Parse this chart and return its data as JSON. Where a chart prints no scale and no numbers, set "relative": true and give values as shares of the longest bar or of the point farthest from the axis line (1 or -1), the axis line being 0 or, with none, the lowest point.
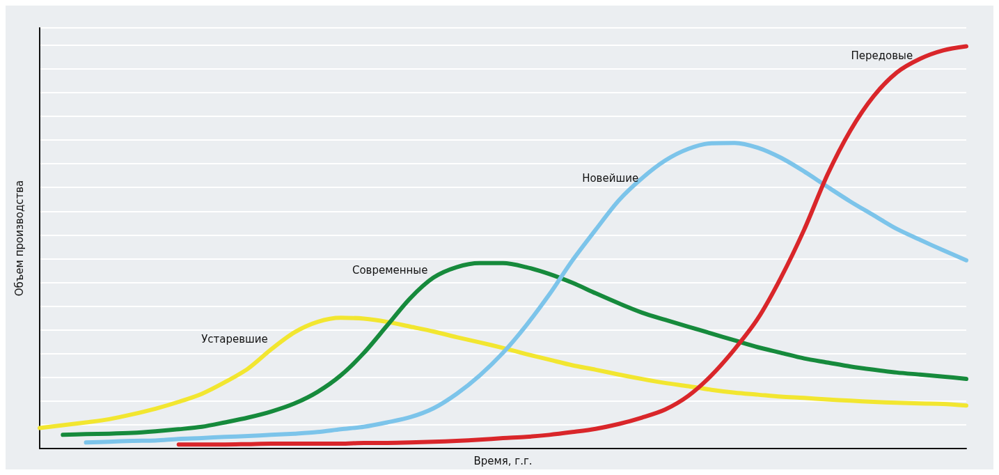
{
  "chart_data": {
    "type": "line",
    "relative": true,
    "xlabel": "Время, г.г.",
    "ylabel": "Объем производства",
    "grid": "y",
    "legend": false,
    "marker": "none",
    "line_style": "solid",
    "categories": [
      null,
      null,
      null,
      null,
      null,
      null,
      null,
      null,
      null,
      null,
      null,
      null,
      null,
      null,
      null,
      null,
      null,
      null,
      null,
      null,
      null,
      null,
      null,
      null,
      null,
      null,
      null,
      null,
      null,
      null,
      null,
      null,
      null,
      null,
      null,
      null,
      null,
      null,
      null,
      null,
      null
    ],
    "series": [
      {
        "name": "Устаревшие",
        "color": "#f2e630",
        "values": [
          0.051,
          0.058,
          0.065,
          0.073,
          0.085,
          0.099,
          0.116,
          0.136,
          0.165,
          0.199,
          0.247,
          0.289,
          0.315,
          0.325,
          0.323,
          0.315,
          0.303,
          0.291,
          0.277,
          0.264,
          0.25,
          0.235,
          0.221,
          0.207,
          0.196,
          0.184,
          0.173,
          0.163,
          0.155,
          0.146,
          0.139,
          0.134,
          0.129,
          0.126,
          0.122,
          0.119,
          0.116,
          0.114,
          0.112,
          0.111,
          0.107
        ]
      },
      {
        "name": "Современные",
        "color": "#168a3c",
        "values": [
          null,
          0.034,
          0.036,
          0.037,
          0.039,
          0.043,
          0.048,
          0.054,
          0.065,
          0.077,
          0.092,
          0.112,
          0.141,
          0.182,
          0.238,
          0.306,
          0.374,
          0.425,
          0.451,
          0.461,
          0.461,
          0.451,
          0.434,
          0.412,
          0.386,
          0.361,
          0.338,
          0.32,
          0.303,
          0.286,
          0.269,
          0.252,
          0.238,
          0.224,
          0.214,
          0.204,
          0.196,
          0.189,
          0.184,
          0.179,
          0.173
        ]
      },
      {
        "name": "Новейшие",
        "color": "#7cc4ea",
        "values": [
          null,
          null,
          0.015,
          0.017,
          0.019,
          0.02,
          0.024,
          0.026,
          0.029,
          0.031,
          0.034,
          0.037,
          0.041,
          0.048,
          0.054,
          0.065,
          0.078,
          0.1,
          0.136,
          0.182,
          0.238,
          0.306,
          0.383,
          0.468,
          0.544,
          0.617,
          0.672,
          0.716,
          0.745,
          0.759,
          0.76,
          0.748,
          0.723,
          0.689,
          0.651,
          0.614,
          0.58,
          0.546,
          0.519,
          0.493,
          0.468
        ]
      },
      {
        "name": "Передовые",
        "color": "#d9262a",
        "values": [
          null,
          null,
          null,
          null,
          null,
          null,
          0.01,
          0.01,
          0.01,
          0.011,
          0.012,
          0.012,
          0.012,
          0.012,
          0.014,
          0.014,
          0.015,
          0.017,
          0.019,
          0.022,
          0.026,
          0.029,
          0.034,
          0.041,
          0.049,
          0.061,
          0.077,
          0.097,
          0.131,
          0.182,
          0.247,
          0.323,
          0.425,
          0.544,
          0.68,
          0.791,
          0.876,
          0.935,
          0.969,
          0.99,
          1
        ]
      }
    ]
  }
}
